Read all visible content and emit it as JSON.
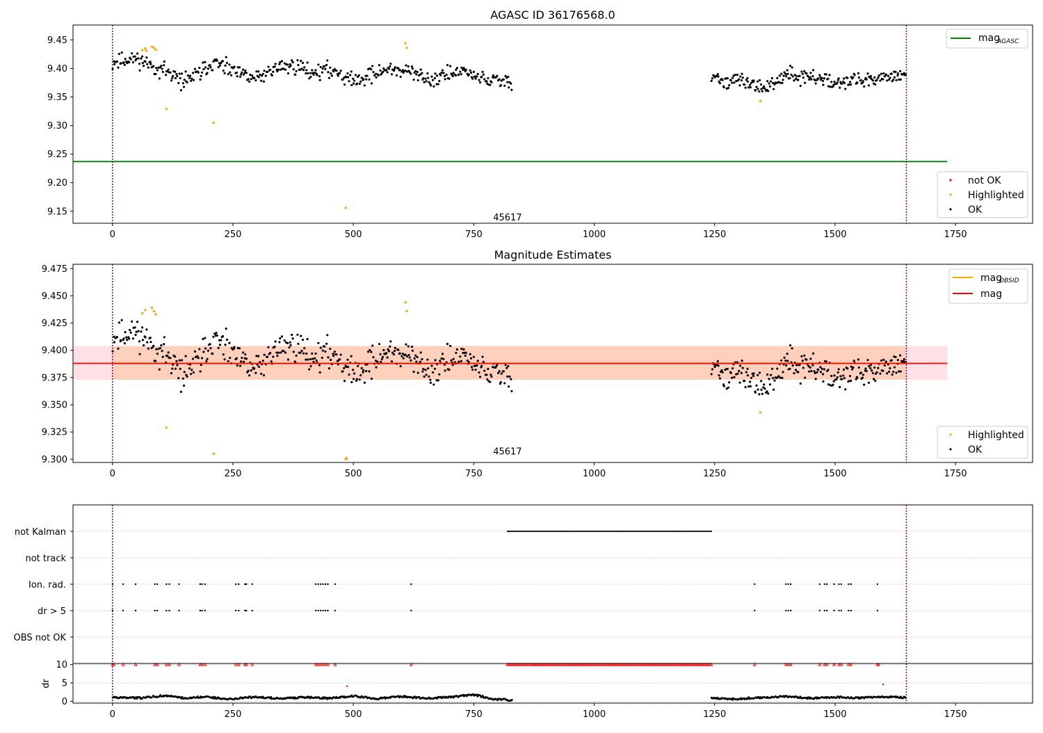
{
  "figure": {
    "background": "#ffffff"
  },
  "chart_data": [
    {
      "type": "scatter",
      "panel": "agasc",
      "title": "AGASC ID 36176568.0",
      "xlabel": "",
      "ylabel": "",
      "xlim": [
        -82,
        1910
      ],
      "ylim": [
        9.129,
        9.476
      ],
      "x_ticks": [
        0,
        250,
        500,
        750,
        1000,
        1250,
        1500,
        1750
      ],
      "y_ticks": [
        9.15,
        9.2,
        9.25,
        9.3,
        9.35,
        9.4,
        9.45
      ],
      "y_tick_format": 2,
      "grid": false,
      "vlines": [
        0,
        1648
      ],
      "obsid_label": {
        "text": "45617",
        "x": 820,
        "y": 9.14
      },
      "hlines": [
        {
          "name": "mag_AGASC",
          "y": 9.237,
          "x_range": [
            -82,
            1733
          ],
          "color": "#008000"
        }
      ],
      "series": [
        {
          "name": "not OK",
          "color": "#ff0000",
          "points": []
        },
        {
          "name": "Highlighted",
          "color": "#ffa500",
          "points": [
            [
              62,
              9.432
            ],
            [
              68,
              9.435
            ],
            [
              70,
              9.431
            ],
            [
              82,
              9.438
            ],
            [
              86,
              9.436
            ],
            [
              90,
              9.433
            ],
            [
              112,
              9.329
            ],
            [
              210,
              9.305
            ],
            [
              484,
              9.156
            ],
            [
              608,
              9.444
            ],
            [
              611,
              9.436
            ],
            [
              1345,
              9.343
            ]
          ]
        },
        {
          "name": "OK",
          "color": "#000000",
          "segments": [
            {
              "x": [
                0,
                830
              ],
              "anchors": [
                [
                  0,
                  9.41
                ],
                [
                  50,
                  9.418
                ],
                [
                  80,
                  9.405
                ],
                [
                  110,
                  9.396
                ],
                [
                  140,
                  9.378
                ],
                [
                  170,
                  9.386
                ],
                [
                  210,
                  9.41
                ],
                [
                  260,
                  9.391
                ],
                [
                  300,
                  9.382
                ],
                [
                  340,
                  9.402
                ],
                [
                  380,
                  9.404
                ],
                [
                  420,
                  9.394
                ],
                [
                  460,
                  9.398
                ],
                [
                  500,
                  9.378
                ],
                [
                  540,
                  9.39
                ],
                [
                  580,
                  9.4
                ],
                [
                  620,
                  9.392
                ],
                [
                  660,
                  9.38
                ],
                [
                  700,
                  9.392
                ],
                [
                  740,
                  9.392
                ],
                [
                  780,
                  9.378
                ],
                [
                  830,
                  9.378
                ]
              ],
              "spread": 0.012,
              "count": 440
            },
            {
              "x": [
                1243,
                1648
              ],
              "anchors": [
                [
                  1243,
                  9.378
                ],
                [
                  1280,
                  9.38
                ],
                [
                  1320,
                  9.372
                ],
                [
                  1360,
                  9.368
                ],
                [
                  1400,
                  9.39
                ],
                [
                  1450,
                  9.384
                ],
                [
                  1500,
                  9.378
                ],
                [
                  1550,
                  9.378
                ],
                [
                  1600,
                  9.386
                ],
                [
                  1648,
                  9.392
                ]
              ],
              "spread": 0.011,
              "count": 230
            }
          ]
        }
      ],
      "legends": [
        {
          "position": "upper-right",
          "entries": [
            {
              "label": "mag",
              "sub": "AGASC",
              "kind": "line",
              "color": "#008000"
            }
          ]
        },
        {
          "position": "lower-right",
          "entries": [
            {
              "label": "not OK",
              "kind": "marker",
              "color": "#ff0000"
            },
            {
              "label": "Highlighted",
              "kind": "marker",
              "color": "#ffa500"
            },
            {
              "label": "OK",
              "kind": "marker",
              "color": "#000000"
            }
          ]
        }
      ]
    },
    {
      "type": "scatter",
      "panel": "estimates",
      "title": "Magnitude Estimates",
      "xlabel": "",
      "ylabel": "",
      "xlim": [
        -82,
        1910
      ],
      "ylim": [
        9.297,
        9.479
      ],
      "x_ticks": [
        0,
        250,
        500,
        750,
        1000,
        1250,
        1500,
        1750
      ],
      "y_ticks": [
        9.3,
        9.325,
        9.35,
        9.375,
        9.4,
        9.425,
        9.45,
        9.475
      ],
      "y_tick_format": 3,
      "grid": false,
      "vlines": [
        0,
        1648
      ],
      "obsid_label": {
        "text": "45617",
        "x": 820,
        "y": 9.301
      },
      "bands": [
        {
          "name": "obsid-band",
          "y": [
            9.373,
            9.404
          ],
          "x_range": [
            0,
            1648
          ],
          "color": "#ffd0bb"
        },
        {
          "name": "mag-band",
          "y": [
            9.373,
            9.404
          ],
          "x_range": [
            -82,
            1733
          ],
          "color": "#ffe0e4"
        }
      ],
      "hlines": [
        {
          "name": "mag_OBSID",
          "y": 9.388,
          "x_range": [
            0,
            1648
          ],
          "color": "#ffa500"
        },
        {
          "name": "mag",
          "y": 9.388,
          "x_range": [
            -82,
            1733
          ],
          "color": "#ff0000"
        }
      ],
      "series": [
        {
          "name": "Highlighted",
          "color": "#ffa500",
          "points": [
            [
              62,
              9.434
            ],
            [
              68,
              9.437
            ],
            [
              82,
              9.439
            ],
            [
              86,
              9.436
            ],
            [
              90,
              9.433
            ],
            [
              112,
              9.329
            ],
            [
              210,
              9.305
            ],
            [
              484,
              9.3
            ],
            [
              486,
              9.301
            ],
            [
              608,
              9.444
            ],
            [
              611,
              9.436
            ],
            [
              1345,
              9.343
            ]
          ]
        },
        {
          "name": "OK",
          "color": "#000000",
          "segments": [
            {
              "x": [
                0,
                830
              ],
              "anchors": [
                [
                  0,
                  9.41
                ],
                [
                  50,
                  9.418
                ],
                [
                  80,
                  9.405
                ],
                [
                  110,
                  9.396
                ],
                [
                  140,
                  9.378
                ],
                [
                  170,
                  9.386
                ],
                [
                  210,
                  9.41
                ],
                [
                  260,
                  9.391
                ],
                [
                  300,
                  9.382
                ],
                [
                  340,
                  9.402
                ],
                [
                  380,
                  9.404
                ],
                [
                  420,
                  9.394
                ],
                [
                  460,
                  9.398
                ],
                [
                  500,
                  9.378
                ],
                [
                  540,
                  9.39
                ],
                [
                  580,
                  9.4
                ],
                [
                  620,
                  9.392
                ],
                [
                  660,
                  9.38
                ],
                [
                  700,
                  9.392
                ],
                [
                  740,
                  9.392
                ],
                [
                  780,
                  9.378
                ],
                [
                  830,
                  9.378
                ]
              ],
              "spread": 0.012,
              "count": 440
            },
            {
              "x": [
                1243,
                1648
              ],
              "anchors": [
                [
                  1243,
                  9.378
                ],
                [
                  1280,
                  9.38
                ],
                [
                  1320,
                  9.372
                ],
                [
                  1360,
                  9.368
                ],
                [
                  1400,
                  9.39
                ],
                [
                  1450,
                  9.384
                ],
                [
                  1500,
                  9.378
                ],
                [
                  1550,
                  9.378
                ],
                [
                  1600,
                  9.386
                ],
                [
                  1648,
                  9.392
                ]
              ],
              "spread": 0.011,
              "count": 230
            }
          ]
        }
      ],
      "legends": [
        {
          "position": "upper-right",
          "entries": [
            {
              "label": "mag",
              "sub": "OBSID",
              "kind": "line",
              "color": "#ffa500"
            },
            {
              "label": "mag",
              "kind": "line",
              "color": "#ff0000"
            }
          ]
        },
        {
          "position": "lower-right",
          "entries": [
            {
              "label": "Highlighted",
              "kind": "marker",
              "color": "#ffa500"
            },
            {
              "label": "OK",
              "kind": "marker",
              "color": "#000000"
            }
          ]
        }
      ]
    },
    {
      "type": "scatter",
      "panel": "flags",
      "title": "",
      "xlabel": "",
      "ylabel": "",
      "xlim": [
        -82,
        1910
      ],
      "categories": [
        "not Kalman",
        "not track",
        "Ion. rad.",
        "dr > 5",
        "OBS not OK"
      ],
      "grid": true,
      "vlines": [
        0,
        1648
      ],
      "series": [
        {
          "name": "not Kalman",
          "color": "#000000",
          "range": [
            820,
            1243
          ],
          "step": 3
        },
        {
          "name": "not track",
          "color": "#000000",
          "points": []
        },
        {
          "name": "Ion. rad.",
          "color": "#000000",
          "points": [
            0,
            22,
            48,
            88,
            93,
            112,
            118,
            138,
            182,
            186,
            192,
            256,
            262,
            275,
            278,
            290,
            422,
            427,
            432,
            437,
            442,
            447,
            462,
            620,
            1333,
            1398,
            1403,
            1408,
            1468,
            1478,
            1483,
            1498,
            1508,
            1513,
            1528,
            1533,
            1588
          ]
        },
        {
          "name": "dr > 5",
          "color": "#000000",
          "points": [
            0,
            22,
            48,
            88,
            93,
            112,
            118,
            138,
            182,
            186,
            192,
            256,
            262,
            275,
            278,
            290,
            422,
            427,
            432,
            437,
            442,
            447,
            462,
            620,
            1333,
            1398,
            1403,
            1408,
            1468,
            1478,
            1483,
            1498,
            1508,
            1513,
            1528,
            1533,
            1588
          ]
        },
        {
          "name": "OBS not OK",
          "color": "#000000",
          "points": []
        }
      ]
    },
    {
      "type": "scatter",
      "panel": "dr",
      "title": "",
      "xlabel": "",
      "ylabel": "dr",
      "xlim": [
        -82,
        1910
      ],
      "ylim": [
        -0.5,
        10.3
      ],
      "y_ticks": [
        0,
        5,
        10
      ],
      "x_ticks": [
        0,
        250,
        500,
        750,
        1000,
        1250,
        1500,
        1750
      ],
      "grid": true,
      "vlines": [
        0,
        1648
      ],
      "series": [
        {
          "name": "dr-high",
          "color": "#ff0000",
          "clipped_value": 10,
          "points": [
            0,
            3,
            22,
            48,
            88,
            93,
            112,
            118,
            138,
            182,
            186,
            192,
            256,
            262,
            275,
            278,
            290,
            422,
            427,
            432,
            437,
            442,
            447,
            462,
            620,
            1333,
            1398,
            1403,
            1408,
            1468,
            1478,
            1483,
            1498,
            1508,
            1513,
            1528,
            1533,
            1588,
            1590
          ],
          "range": [
            820,
            1243
          ],
          "step": 3
        },
        {
          "name": "dr-outlier",
          "color": "#ff0000",
          "points": [
            [
              487,
              4.1
            ],
            [
              1600,
              4.6
            ]
          ]
        },
        {
          "name": "dr",
          "color": "#000000",
          "segments": [
            {
              "x": [
                0,
                830
              ],
              "anchors": [
                [
                  0,
                  1.0
                ],
                [
                  60,
                  0.9
                ],
                [
                  110,
                  1.6
                ],
                [
                  150,
                  0.8
                ],
                [
                  190,
                  1.2
                ],
                [
                  240,
                  0.6
                ],
                [
                  300,
                  1.2
                ],
                [
                  350,
                  0.7
                ],
                [
                  400,
                  1.1
                ],
                [
                  450,
                  0.8
                ],
                [
                  500,
                  1.4
                ],
                [
                  550,
                  0.7
                ],
                [
                  600,
                  1.3
                ],
                [
                  650,
                  0.8
                ],
                [
                  700,
                  1.1
                ],
                [
                  750,
                  1.8
                ],
                [
                  790,
                  0.6
                ],
                [
                  830,
                  0.3
                ]
              ],
              "count": 420
            },
            {
              "x": [
                1243,
                1648
              ],
              "anchors": [
                [
                  1243,
                  0.9
                ],
                [
                  1290,
                  0.6
                ],
                [
                  1340,
                  1.0
                ],
                [
                  1400,
                  1.3
                ],
                [
                  1450,
                  0.8
                ],
                [
                  1500,
                  1.1
                ],
                [
                  1550,
                  0.9
                ],
                [
                  1600,
                  1.2
                ],
                [
                  1648,
                  1.0
                ]
              ],
              "count": 200
            }
          ]
        }
      ]
    }
  ]
}
